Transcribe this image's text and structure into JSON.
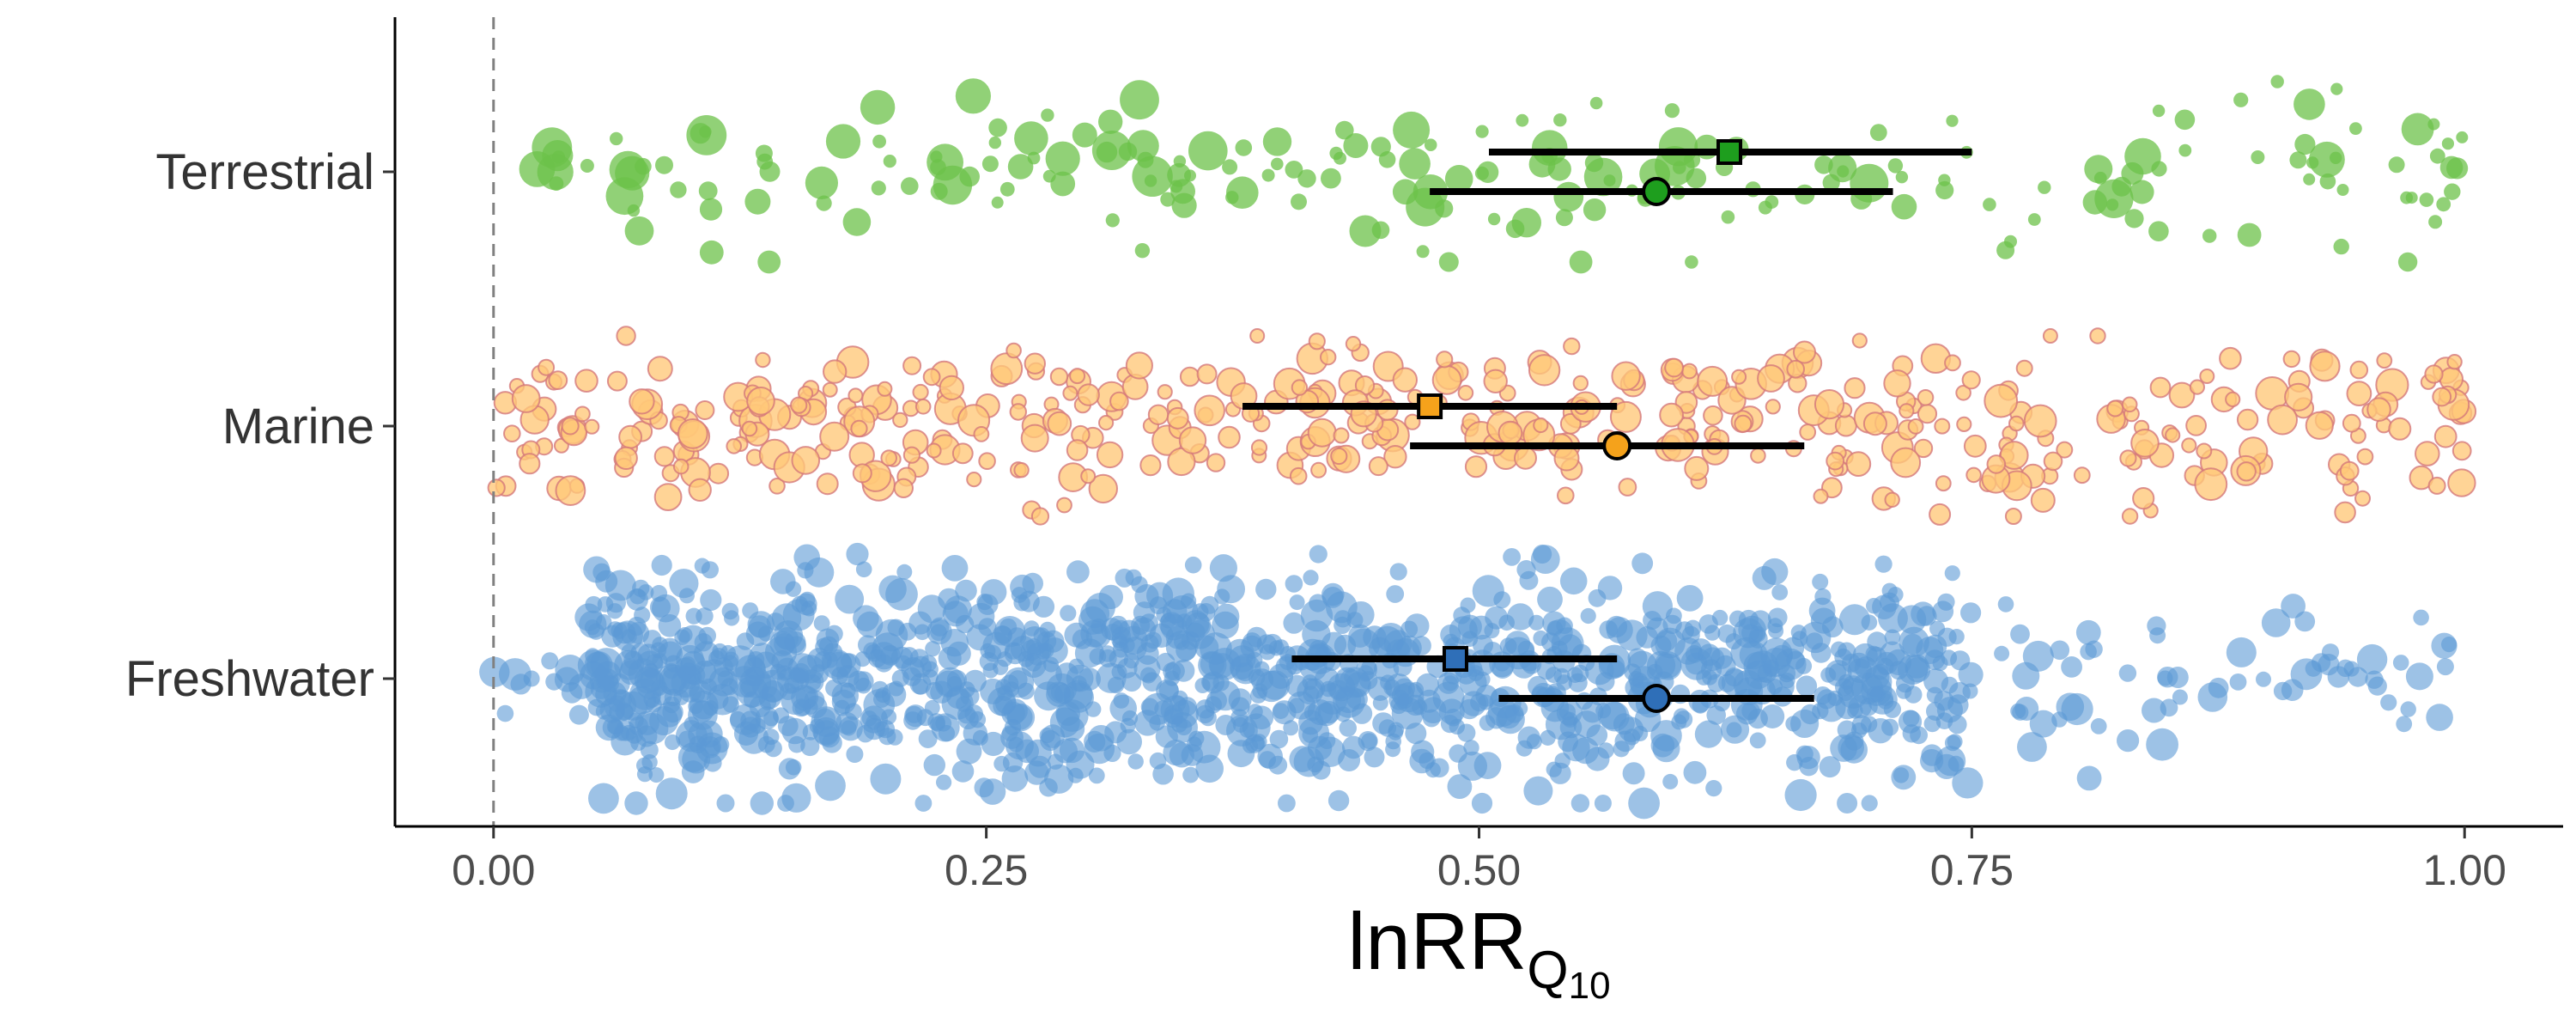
{
  "chart_data": {
    "type": "scatter",
    "title": "",
    "xlabel": "lnRR",
    "xlabel_subscript": "Q",
    "xlabel_subscript_sub": "10",
    "ylabel": "",
    "xlim": [
      -0.05,
      1.05
    ],
    "x_ticks": [
      0,
      0.25,
      0.5,
      0.75,
      1
    ],
    "x_tick_labels": [
      "0.00",
      "0.25",
      "0.50",
      "0.75",
      "1.00"
    ],
    "reference_line_x": 0,
    "grid": false,
    "legend": "none",
    "categories": [
      "Terrestrial",
      "Marine",
      "Freshwater"
    ],
    "series": [
      {
        "category": "Terrestrial",
        "fill": "#6cc24a",
        "stroke": "#6cc24a",
        "marker_fill": "#1e9e1e",
        "n_points": 210,
        "x_range": [
          0.02,
          1.0
        ],
        "summaries": [
          {
            "marker": "square",
            "estimate": 0.627,
            "ci": [
              0.505,
              0.75
            ]
          },
          {
            "marker": "circle",
            "estimate": 0.59,
            "ci": [
              0.475,
              0.71
            ]
          }
        ]
      },
      {
        "category": "Marine",
        "fill": "#ffc878",
        "stroke": "#d4787a",
        "marker_fill": "#f5a21b",
        "n_points": 470,
        "x_range": [
          0.0,
          1.0
        ],
        "summaries": [
          {
            "marker": "square",
            "estimate": 0.475,
            "ci": [
              0.38,
              0.57
            ]
          },
          {
            "marker": "circle",
            "estimate": 0.57,
            "ci": [
              0.465,
              0.665
            ]
          }
        ]
      },
      {
        "category": "Freshwater",
        "fill": "#5b9ad5",
        "stroke": "#5b9ad5",
        "marker_fill": "#2f6fb8",
        "n_points": 1300,
        "x_range": [
          0.0,
          1.0
        ],
        "summaries": [
          {
            "marker": "square",
            "estimate": 0.488,
            "ci": [
              0.405,
              0.57
            ]
          },
          {
            "marker": "circle",
            "estimate": 0.59,
            "ci": [
              0.51,
              0.67
            ]
          }
        ]
      }
    ]
  }
}
